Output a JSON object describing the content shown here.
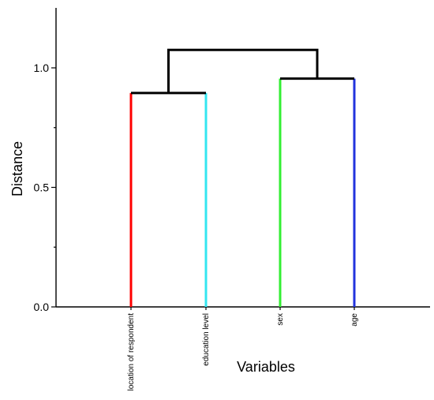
{
  "chart_data": {
    "type": "dendrogram",
    "title": "",
    "xlabel": "Variables",
    "ylabel": "Distance",
    "ylim": [
      0,
      1.25
    ],
    "yticks": [
      {
        "value": 0.0,
        "label": "0.0"
      },
      {
        "value": 0.5,
        "label": "0.5"
      },
      {
        "value": 1.0,
        "label": "1.0"
      }
    ],
    "y_minor_ticks": [
      0.25,
      0.75
    ],
    "leaves": [
      {
        "label": "location of respondent",
        "color": "#ff0000"
      },
      {
        "label": "education level",
        "color": "#33e6f0"
      },
      {
        "label": "sex",
        "color": "#33ee33"
      },
      {
        "label": "age",
        "color": "#2233dd"
      }
    ],
    "merges": [
      {
        "left": "location of respondent",
        "right": "education level",
        "height": 0.895
      },
      {
        "left": "sex",
        "right": "age",
        "height": 0.955
      },
      {
        "left": "location of respondent + education level",
        "right": "sex + age",
        "height": 1.075
      }
    ],
    "grid": false,
    "legend": "none"
  }
}
